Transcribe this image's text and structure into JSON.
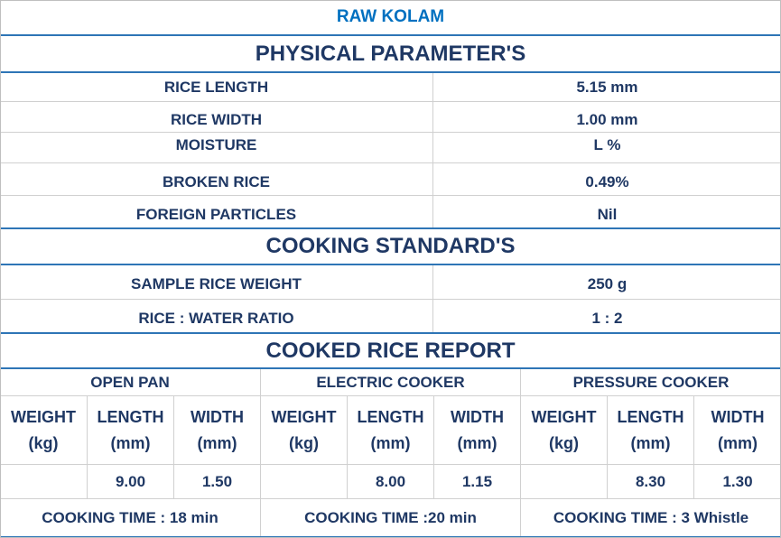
{
  "title": "RAW KOLAM",
  "physical": {
    "heading": "PHYSICAL PARAMETER'S",
    "rows": [
      {
        "label": "RICE LENGTH",
        "value": "5.15 mm"
      },
      {
        "label": "RICE WIDTH",
        "value": "1.00 mm"
      },
      {
        "label": "MOISTURE",
        "value": "L %"
      },
      {
        "label": "BROKEN RICE",
        "value": "0.49%"
      },
      {
        "label": "FOREIGN PARTICLES",
        "value": "Nil"
      }
    ]
  },
  "cooking": {
    "heading": "COOKING STANDARD'S",
    "rows": [
      {
        "label": "SAMPLE RICE WEIGHT",
        "value": "250 g"
      },
      {
        "label": "RICE : WATER RATIO",
        "value": "1 : 2"
      }
    ]
  },
  "report": {
    "heading": "COOKED RICE REPORT",
    "methods": [
      "OPEN PAN",
      "ELECTRIC COOKER",
      "PRESSURE COOKER"
    ],
    "columns": [
      {
        "l1": "WEIGHT",
        "l2": "(kg)"
      },
      {
        "l1": "LENGTH",
        "l2": "(mm)"
      },
      {
        "l1": "WIDTH",
        "l2": "(mm)"
      }
    ],
    "values": [
      {
        "weight": "",
        "length": "9.00",
        "width": "1.50"
      },
      {
        "weight": "",
        "length": "8.00",
        "width": "1.15"
      },
      {
        "weight": "",
        "length": "8.30",
        "width": "1.30"
      }
    ],
    "times": [
      "COOKING TIME : 18 min",
      "COOKING TIME :20 min",
      "COOKING TIME : 3 Whistle"
    ]
  }
}
